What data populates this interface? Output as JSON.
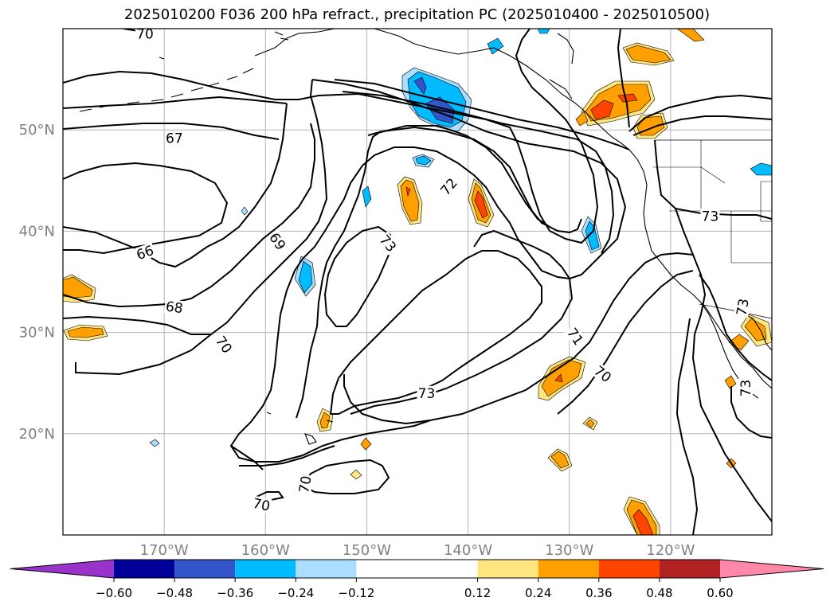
{
  "chart_data": {
    "type": "contour",
    "title": "2025010200 F036 200 hPa refract., precipitation PC (2025010400 - 2025010500)",
    "map": {
      "lon_range": [
        -180,
        -110
      ],
      "lat_range": [
        10,
        60
      ],
      "lon_ticks": [
        {
          "value": -170,
          "label": "170°W"
        },
        {
          "value": -160,
          "label": "160°W"
        },
        {
          "value": -150,
          "label": "150°W"
        },
        {
          "value": -140,
          "label": "140°W"
        },
        {
          "value": -130,
          "label": "130°W"
        },
        {
          "value": -120,
          "label": "120°W"
        }
      ],
      "lat_ticks": [
        {
          "value": 20,
          "label": "20°N"
        },
        {
          "value": 30,
          "label": "30°N"
        },
        {
          "value": 40,
          "label": "40°N"
        },
        {
          "value": 50,
          "label": "50°N"
        }
      ],
      "grid": true
    },
    "contour_labels": [
      {
        "text": "66",
        "lon": -171.9,
        "lat": 37.9,
        "rot": 20
      },
      {
        "text": "67",
        "lon": -169.0,
        "lat": 49.2,
        "rot": 0
      },
      {
        "text": "68",
        "lon": -169.0,
        "lat": 32.5,
        "rot": -8
      },
      {
        "text": "69",
        "lon": -158.8,
        "lat": 39.0,
        "rot": -55
      },
      {
        "text": "70",
        "lon": -164.1,
        "lat": 28.8,
        "rot": -55
      },
      {
        "text": "70",
        "lon": -160.4,
        "lat": 13.0,
        "rot": -12
      },
      {
        "text": "70",
        "lon": -156.1,
        "lat": 15.0,
        "rot": 80
      },
      {
        "text": "70",
        "lon": -126.7,
        "lat": 25.9,
        "rot": -38
      },
      {
        "text": "71",
        "lon": -129.4,
        "lat": 29.6,
        "rot": -55
      },
      {
        "text": "72",
        "lon": -141.9,
        "lat": 44.4,
        "rot": 50
      },
      {
        "text": "73",
        "lon": -147.9,
        "lat": 38.8,
        "rot": -50
      },
      {
        "text": "73",
        "lon": -144.1,
        "lat": 24.0,
        "rot": 0
      },
      {
        "text": "73",
        "lon": -116.1,
        "lat": 41.5,
        "rot": 0
      },
      {
        "text": "73",
        "lon": -112.9,
        "lat": 32.5,
        "rot": 80
      },
      {
        "text": "73",
        "lon": -112.6,
        "lat": 24.5,
        "rot": 90
      },
      {
        "text": "70",
        "lon": -171.9,
        "lat": 59.5,
        "rot": 0
      }
    ],
    "colorbar": {
      "ticks": [
        "−0.60",
        "−0.48",
        "−0.36",
        "−0.24",
        "−0.12",
        "0.12",
        "0.24",
        "0.36",
        "0.48",
        "0.60"
      ],
      "bounds": [
        -0.6,
        -0.48,
        -0.36,
        -0.24,
        -0.12,
        0.12,
        0.24,
        0.36,
        0.48,
        0.6
      ],
      "colors": [
        "#9933cc",
        "#000099",
        "#3355cc",
        "#00bbff",
        "#aaddff",
        "#ffffff",
        "#ffe680",
        "#ffa000",
        "#ff4400",
        "#b22222",
        "#ff88aa"
      ],
      "extend": "both"
    }
  }
}
